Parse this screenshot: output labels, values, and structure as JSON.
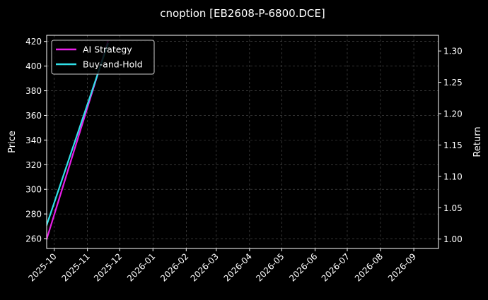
{
  "chart_data": {
    "type": "line",
    "title": "cnoption [EB2608-P-6800.DCE]",
    "ylabel": "Price",
    "y2label": "Return",
    "x_ticks": [
      "2025-10",
      "2025-11",
      "2025-12",
      "2026-01",
      "2026-02",
      "2026-03",
      "2026-04",
      "2026-05",
      "2026-06",
      "2026-07",
      "2026-08",
      "2026-09"
    ],
    "xlim": [
      "2025-09-24",
      "2026-09-24"
    ],
    "y_ticks": [
      260,
      280,
      300,
      320,
      340,
      360,
      380,
      400,
      420
    ],
    "ylim": [
      252,
      425
    ],
    "y2_ticks": [
      "1.00",
      "1.05",
      "1.10",
      "1.15",
      "1.20",
      "1.25",
      "1.30"
    ],
    "y2lim": [
      0.985,
      1.325
    ],
    "grid": true,
    "legend_position": "top-left",
    "series": [
      {
        "name": "AI Strategy",
        "axis": "right",
        "color": "#e81ee8",
        "points": [
          {
            "x": "2025-09-24",
            "y": 1.0
          },
          {
            "x": "2025-11-20",
            "y": 1.315
          }
        ]
      },
      {
        "name": "Buy-and-Hold",
        "axis": "left",
        "color": "#30e0e8",
        "points": [
          {
            "x": "2025-09-24",
            "y": 271
          },
          {
            "x": "2025-11-20",
            "y": 418
          }
        ]
      }
    ]
  }
}
